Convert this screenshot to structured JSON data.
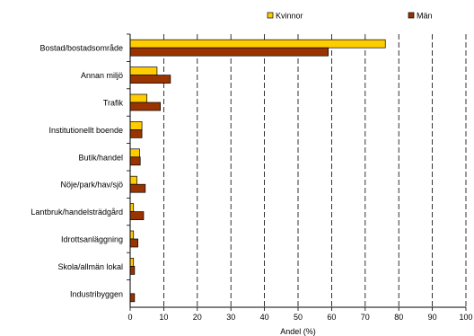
{
  "chart_data": {
    "type": "bar",
    "orientation": "horizontal",
    "title": "",
    "xlabel": "Andel (%)",
    "ylabel": "",
    "xlim": [
      0,
      100
    ],
    "xticks": [
      0,
      10,
      20,
      30,
      40,
      50,
      60,
      70,
      80,
      90,
      100
    ],
    "grid": "vertical dashed",
    "legend_position": "top",
    "categories": [
      "Bostad/bostadsområde",
      "Annan miljö",
      "Trafik",
      "Institutionellt boende",
      "Butik/handel",
      "Nöje/park/hav/sjö",
      "Lantbruk/handelsträdgård",
      "Idrottsanläggning",
      "Skola/allmän lokal",
      "Industribyggen"
    ],
    "series": [
      {
        "name": "Kvinnor",
        "color": "#FFCC00",
        "values": [
          76,
          8,
          5,
          3.5,
          2.8,
          2,
          1,
          1,
          1,
          0
        ]
      },
      {
        "name": "Män",
        "color": "#993300",
        "values": [
          59,
          12,
          9,
          3.5,
          3,
          4.5,
          4,
          2.3,
          1.3,
          1.3
        ]
      }
    ]
  }
}
